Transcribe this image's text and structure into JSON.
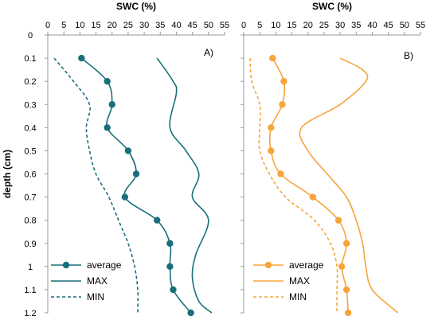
{
  "chart_data": [
    {
      "type": "line",
      "panel_label": "A)",
      "title": "SWC (%)",
      "xlabel": "SWC (%)",
      "ylabel": "depth (cm)",
      "xlim": [
        0,
        55
      ],
      "ylim": [
        0,
        1.2
      ],
      "x_ticks": [
        "0",
        "5",
        "10",
        "15",
        "20",
        "25",
        "30",
        "35",
        "40",
        "45",
        "50",
        "55"
      ],
      "y_ticks": [
        "0",
        "0.1",
        "0.2",
        "0.3",
        "0.4",
        "0.5",
        "0.6",
        "0.7",
        "0.8",
        "0.9",
        "1",
        "1.1",
        "1.2"
      ],
      "y_axis_inverted": true,
      "legend_position": "bottom-left",
      "grid": false,
      "color": "#1a6f7c",
      "series": [
        {
          "name": "average",
          "style": "solid-markers",
          "points": [
            [
              10.5,
              0.1
            ],
            [
              18.5,
              0.2
            ],
            [
              20,
              0.3
            ],
            [
              18.5,
              0.4
            ],
            [
              25,
              0.5
            ],
            [
              27.5,
              0.6
            ],
            [
              24,
              0.7
            ],
            [
              34,
              0.8
            ],
            [
              38,
              0.9
            ],
            [
              38,
              1.0
            ],
            [
              39,
              1.1
            ],
            [
              44.5,
              1.2
            ]
          ]
        },
        {
          "name": "MAX",
          "style": "solid",
          "points": [
            [
              34,
              0.1
            ],
            [
              39,
              0.2
            ],
            [
              40,
              0.25
            ],
            [
              38,
              0.4
            ],
            [
              43,
              0.5
            ],
            [
              47,
              0.6
            ],
            [
              45,
              0.7
            ],
            [
              50,
              0.8
            ],
            [
              46,
              0.95
            ],
            [
              45,
              1.05
            ],
            [
              47,
              1.15
            ],
            [
              51,
              1.2
            ]
          ]
        },
        {
          "name": "MIN",
          "style": "dashed",
          "points": [
            [
              2,
              0.1
            ],
            [
              8,
              0.2
            ],
            [
              13,
              0.3
            ],
            [
              12,
              0.4
            ],
            [
              13,
              0.5
            ],
            [
              15,
              0.6
            ],
            [
              19,
              0.7
            ],
            [
              22,
              0.8
            ],
            [
              25,
              0.9
            ],
            [
              27,
              1.0
            ],
            [
              28,
              1.1
            ],
            [
              28,
              1.2
            ]
          ]
        }
      ]
    },
    {
      "type": "line",
      "panel_label": "B)",
      "title": "SWC (%)",
      "xlabel": "SWC (%)",
      "ylabel": "",
      "xlim": [
        0,
        55
      ],
      "ylim": [
        0,
        1.2
      ],
      "x_ticks": [
        "0",
        "5",
        "10",
        "15",
        "20",
        "25",
        "30",
        "35",
        "40",
        "45",
        "50",
        "55"
      ],
      "y_axis_inverted": true,
      "legend_position": "bottom-left",
      "grid": false,
      "color": "#f6a53b",
      "series": [
        {
          "name": "average",
          "style": "solid-markers",
          "points": [
            [
              9,
              0.1
            ],
            [
              12.5,
              0.2
            ],
            [
              12,
              0.3
            ],
            [
              8.5,
              0.4
            ],
            [
              8.5,
              0.5
            ],
            [
              11.5,
              0.6
            ],
            [
              21.5,
              0.7
            ],
            [
              29.5,
              0.8
            ],
            [
              32,
              0.9
            ],
            [
              30.5,
              1.0
            ],
            [
              32,
              1.1
            ],
            [
              32.5,
              1.2
            ]
          ]
        },
        {
          "name": "MAX",
          "style": "solid",
          "points": [
            [
              30,
              0.1
            ],
            [
              37,
              0.15
            ],
            [
              38,
              0.2
            ],
            [
              30,
              0.3
            ],
            [
              18,
              0.4
            ],
            [
              20,
              0.5
            ],
            [
              26,
              0.6
            ],
            [
              32,
              0.7
            ],
            [
              35,
              0.8
            ],
            [
              37,
              0.9
            ],
            [
              38,
              1.0
            ],
            [
              40,
              1.1
            ],
            [
              48,
              1.2
            ]
          ]
        },
        {
          "name": "MIN",
          "style": "dashed",
          "points": [
            [
              2,
              0.1
            ],
            [
              2.5,
              0.2
            ],
            [
              5,
              0.3
            ],
            [
              5,
              0.4
            ],
            [
              5,
              0.5
            ],
            [
              8,
              0.6
            ],
            [
              13,
              0.7
            ],
            [
              22,
              0.8
            ],
            [
              27,
              0.9
            ],
            [
              29,
              1.0
            ],
            [
              29,
              1.1
            ],
            [
              29,
              1.2
            ]
          ]
        }
      ]
    }
  ]
}
